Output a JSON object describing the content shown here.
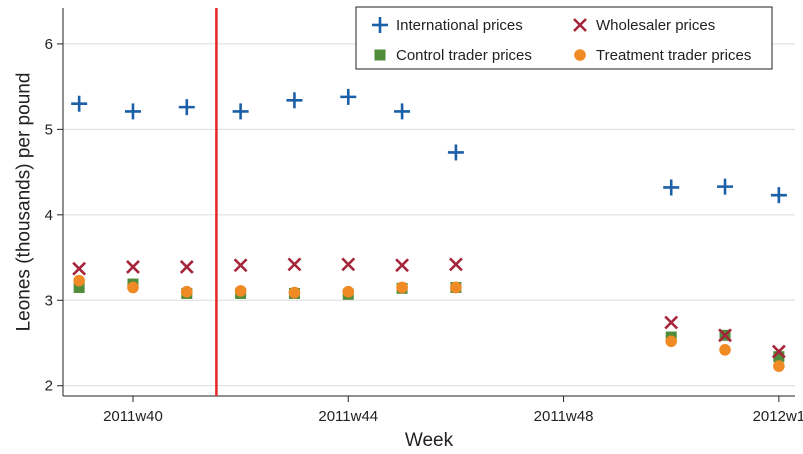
{
  "chart_data": {
    "type": "scatter",
    "xlabel": "Week",
    "ylabel": "Leones (thousands) per pound",
    "x_ticks": [
      "2011w40",
      "2011w44",
      "2011w48",
      "2012w1"
    ],
    "x_tick_weeks": [
      40,
      44,
      48,
      52
    ],
    "xlim": [
      38.7,
      52.3
    ],
    "y_ticks": [
      2,
      3,
      4,
      5,
      6
    ],
    "ylim": [
      1.88,
      6.42
    ],
    "grid": "horizontal",
    "treatment_marker_week": 41.55,
    "treatment_marker_color": "#e8252a",
    "legend_position": "top-right",
    "series": [
      {
        "name": "International prices",
        "marker": "plus",
        "color": "#1a5fa8",
        "points": [
          [
            39,
            5.3
          ],
          [
            40,
            5.21
          ],
          [
            41,
            5.26
          ],
          [
            42,
            5.21
          ],
          [
            43,
            5.34
          ],
          [
            44,
            5.38
          ],
          [
            45,
            5.21
          ],
          [
            46,
            4.73
          ],
          [
            50,
            4.32
          ],
          [
            51,
            4.33
          ],
          [
            52,
            4.23
          ]
        ]
      },
      {
        "name": "Wholesaler prices",
        "marker": "x",
        "color": "#a5253a",
        "points": [
          [
            39,
            3.37
          ],
          [
            40,
            3.39
          ],
          [
            41,
            3.39
          ],
          [
            42,
            3.41
          ],
          [
            43,
            3.42
          ],
          [
            44,
            3.42
          ],
          [
            45,
            3.41
          ],
          [
            46,
            3.42
          ],
          [
            50,
            2.74
          ],
          [
            51,
            2.59
          ],
          [
            52,
            2.4
          ]
        ]
      },
      {
        "name": "Control trader prices",
        "marker": "square",
        "color": "#4f8d3a",
        "points": [
          [
            39,
            3.15
          ],
          [
            40,
            3.19
          ],
          [
            41,
            3.08
          ],
          [
            42,
            3.08
          ],
          [
            43,
            3.08
          ],
          [
            44,
            3.07
          ],
          [
            45,
            3.14
          ],
          [
            46,
            3.15
          ],
          [
            50,
            2.57
          ],
          [
            51,
            2.59
          ],
          [
            52,
            2.34
          ]
        ]
      },
      {
        "name": "Treatment trader prices",
        "marker": "circle",
        "color": "#f08a24",
        "points": [
          [
            39,
            3.23
          ],
          [
            40,
            3.15
          ],
          [
            41,
            3.1
          ],
          [
            42,
            3.11
          ],
          [
            43,
            3.09
          ],
          [
            44,
            3.1
          ],
          [
            45,
            3.15
          ],
          [
            46,
            3.15
          ],
          [
            50,
            2.52
          ],
          [
            51,
            2.42
          ],
          [
            52,
            2.23
          ]
        ]
      }
    ]
  }
}
